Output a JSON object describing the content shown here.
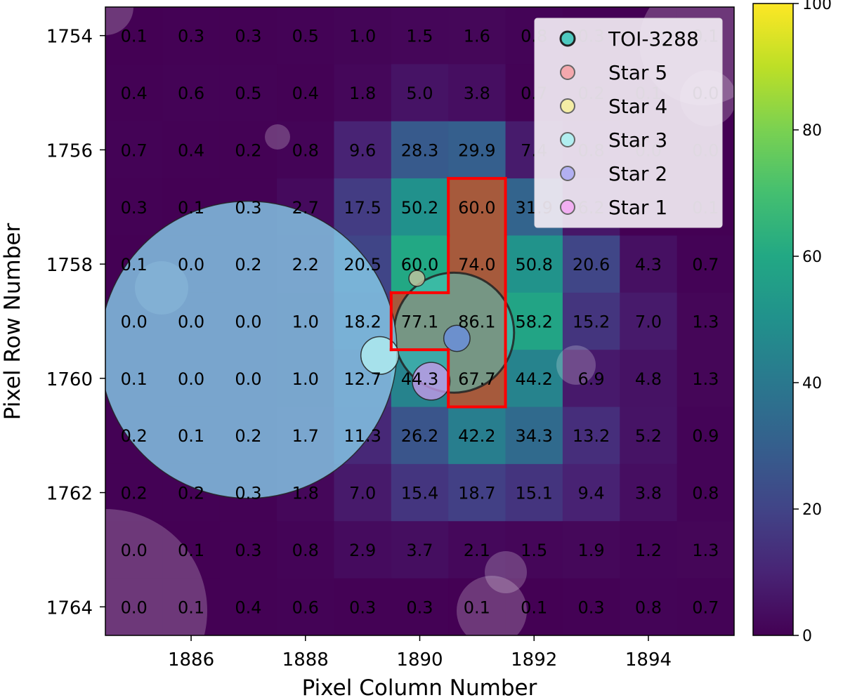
{
  "chart_data": {
    "type": "heatmap",
    "title": "",
    "xlabel": "Pixel Column Number",
    "ylabel": "Pixel Row Number",
    "columns": [
      1885,
      1886,
      1887,
      1888,
      1889,
      1890,
      1891,
      1892,
      1893,
      1894,
      1895
    ],
    "rows": [
      1754,
      1755,
      1756,
      1757,
      1758,
      1759,
      1760,
      1761,
      1762,
      1763,
      1764
    ],
    "x_ticks": [
      1886,
      1888,
      1890,
      1892,
      1894
    ],
    "y_ticks": [
      1754,
      1756,
      1758,
      1760,
      1762,
      1764
    ],
    "values": [
      [
        0.1,
        0.3,
        0.3,
        0.5,
        1.0,
        1.5,
        1.6,
        0.8,
        0.3,
        null,
        0.1
      ],
      [
        0.4,
        0.6,
        0.5,
        0.4,
        1.8,
        5.0,
        3.8,
        0.7,
        0.2,
        0.1,
        0.0
      ],
      [
        0.7,
        0.4,
        0.2,
        0.8,
        9.6,
        28.3,
        29.9,
        7.4,
        0.8,
        0.0,
        0.0
      ],
      [
        0.3,
        0.1,
        0.3,
        2.7,
        17.5,
        50.2,
        60.0,
        31.9,
        6.2,
        null,
        0.1
      ],
      [
        0.1,
        0.0,
        0.2,
        2.2,
        20.5,
        60.0,
        74.0,
        50.8,
        20.6,
        4.3,
        0.7
      ],
      [
        0.0,
        0.0,
        0.0,
        1.0,
        18.2,
        77.1,
        86.1,
        58.2,
        15.2,
        7.0,
        1.3
      ],
      [
        0.1,
        0.0,
        0.0,
        1.0,
        12.7,
        44.3,
        67.7,
        44.2,
        6.9,
        4.8,
        1.3
      ],
      [
        0.2,
        0.1,
        0.2,
        1.7,
        11.3,
        26.2,
        42.2,
        34.3,
        13.2,
        5.2,
        0.9
      ],
      [
        0.2,
        0.2,
        0.3,
        1.8,
        7.0,
        15.4,
        18.7,
        15.1,
        9.4,
        3.8,
        0.8
      ],
      [
        0.0,
        0.1,
        0.3,
        0.8,
        2.9,
        3.7,
        2.1,
        1.5,
        1.9,
        1.2,
        1.3
      ],
      [
        0.0,
        0.1,
        0.4,
        0.6,
        0.3,
        0.3,
        0.1,
        0.1,
        0.3,
        0.8,
        0.7
      ]
    ],
    "aperture_pixels": [
      [
        1891,
        1757
      ],
      [
        1891,
        1758
      ],
      [
        1890,
        1759
      ],
      [
        1891,
        1759
      ],
      [
        1891,
        1760
      ]
    ],
    "colorbar": {
      "colormap": "viridis",
      "range": [
        0,
        100
      ],
      "ticks": [
        0,
        20,
        40,
        60,
        80,
        100
      ]
    },
    "legend": {
      "position": "upper right",
      "entries": [
        {
          "label": "TOI-3288",
          "color": "#4ec9bf"
        },
        {
          "label": "Star 5",
          "color": "#f4a8ad"
        },
        {
          "label": "Star 4",
          "color": "#f4eda5"
        },
        {
          "label": "Star 3",
          "color": "#b1eef0"
        },
        {
          "label": "Star 2",
          "color": "#b2b0f2"
        },
        {
          "label": "Star 1",
          "color": "#f2aff2"
        }
      ]
    },
    "stars": [
      {
        "name": "TOI-3288",
        "col": 1890.6,
        "row": 1759.2,
        "radius_px": 1.05,
        "color": "#4ec9bf"
      },
      {
        "name": "Star 5",
        "col": 1887.0,
        "row": 1759.5,
        "radius_px": 2.6,
        "color": "#87ceeb"
      },
      {
        "name": "Star 4",
        "col": 1889.95,
        "row": 1758.25,
        "radius_px": 0.14,
        "color": "#c8c4a0"
      },
      {
        "name": "Star 3",
        "col": 1889.3,
        "row": 1759.6,
        "radius_px": 0.33,
        "color": "#b1eef0"
      },
      {
        "name": "Star 2",
        "col": 1890.65,
        "row": 1759.3,
        "radius_px": 0.23,
        "color": "#6a8fe0"
      },
      {
        "name": "Star 1",
        "col": 1890.2,
        "row": 1760.05,
        "radius_px": 0.33,
        "color": "#c49ae8"
      }
    ]
  },
  "colors": {
    "aperture_outline": "#ff0000",
    "aperture_fill": "#a65a3c",
    "background": "#ffffff"
  }
}
